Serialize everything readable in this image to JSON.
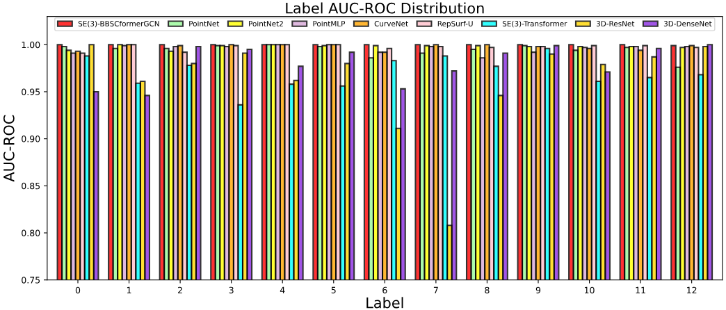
{
  "chart_data": {
    "type": "bar",
    "title": "Label AUC-ROC Distribution",
    "xlabel": "Label",
    "ylabel": "AUC-ROC",
    "categories": [
      "0",
      "1",
      "2",
      "3",
      "4",
      "5",
      "6",
      "7",
      "8",
      "9",
      "10",
      "11",
      "12"
    ],
    "series": [
      {
        "name": "SE(3)-BBSCformerGCN",
        "color": "#ff0000",
        "values": [
          1.0,
          1.0,
          1.0,
          1.0,
          1.0,
          1.0,
          1.0,
          1.0,
          1.0,
          1.0,
          1.0,
          1.0,
          0.999
        ]
      },
      {
        "name": "PointNet",
        "color": "#98fb98",
        "values": [
          0.998,
          0.996,
          0.996,
          0.999,
          1.0,
          0.998,
          0.986,
          0.991,
          0.995,
          0.999,
          0.994,
          0.997,
          0.976
        ]
      },
      {
        "name": "PointNet2",
        "color": "#ffff00",
        "values": [
          0.994,
          1.0,
          0.993,
          0.999,
          1.0,
          0.999,
          0.999,
          0.999,
          0.999,
          0.998,
          0.998,
          0.998,
          0.997
        ]
      },
      {
        "name": "PointMLP",
        "color": "#d8a8d8",
        "values": [
          0.991,
          0.999,
          0.998,
          0.998,
          1.0,
          1.0,
          0.992,
          0.998,
          0.986,
          0.992,
          0.997,
          0.998,
          0.998
        ]
      },
      {
        "name": "CurveNet",
        "color": "#ffa500",
        "values": [
          0.993,
          1.0,
          0.999,
          1.0,
          1.0,
          1.0,
          0.992,
          1.0,
          1.0,
          0.998,
          0.996,
          0.994,
          0.999
        ]
      },
      {
        "name": "RepSurf-U",
        "color": "#ffc0cb",
        "values": [
          0.991,
          1.0,
          0.992,
          0.999,
          1.0,
          1.0,
          0.996,
          0.998,
          0.997,
          0.998,
          0.999,
          0.999,
          0.997
        ]
      },
      {
        "name": "SE(3)-Transformer",
        "color": "#00ffff",
        "values": [
          0.988,
          0.959,
          0.978,
          0.936,
          0.958,
          0.956,
          0.983,
          0.988,
          0.977,
          0.996,
          0.961,
          0.965,
          0.968
        ]
      },
      {
        "name": "3D-ResNet",
        "color": "#ffd700",
        "values": [
          1.0,
          0.961,
          0.98,
          0.991,
          0.962,
          0.98,
          0.911,
          0.808,
          0.946,
          0.99,
          0.979,
          0.987,
          0.998
        ]
      },
      {
        "name": "3D-DenseNet",
        "color": "#8a2be2",
        "values": [
          0.95,
          0.946,
          0.998,
          0.995,
          0.977,
          0.992,
          0.953,
          0.972,
          0.991,
          0.999,
          0.971,
          0.996,
          1.0
        ]
      }
    ],
    "ylim": [
      0.75,
      1.03
    ],
    "yticks": [
      {
        "value": 0.75,
        "label": "0.75"
      },
      {
        "value": 0.8,
        "label": "0.80"
      },
      {
        "value": 0.85,
        "label": "0.85"
      },
      {
        "value": 0.9,
        "label": "0.90"
      },
      {
        "value": 0.95,
        "label": "0.95"
      },
      {
        "value": 1.0,
        "label": "1.00"
      }
    ],
    "legend": "top",
    "grid": false
  }
}
